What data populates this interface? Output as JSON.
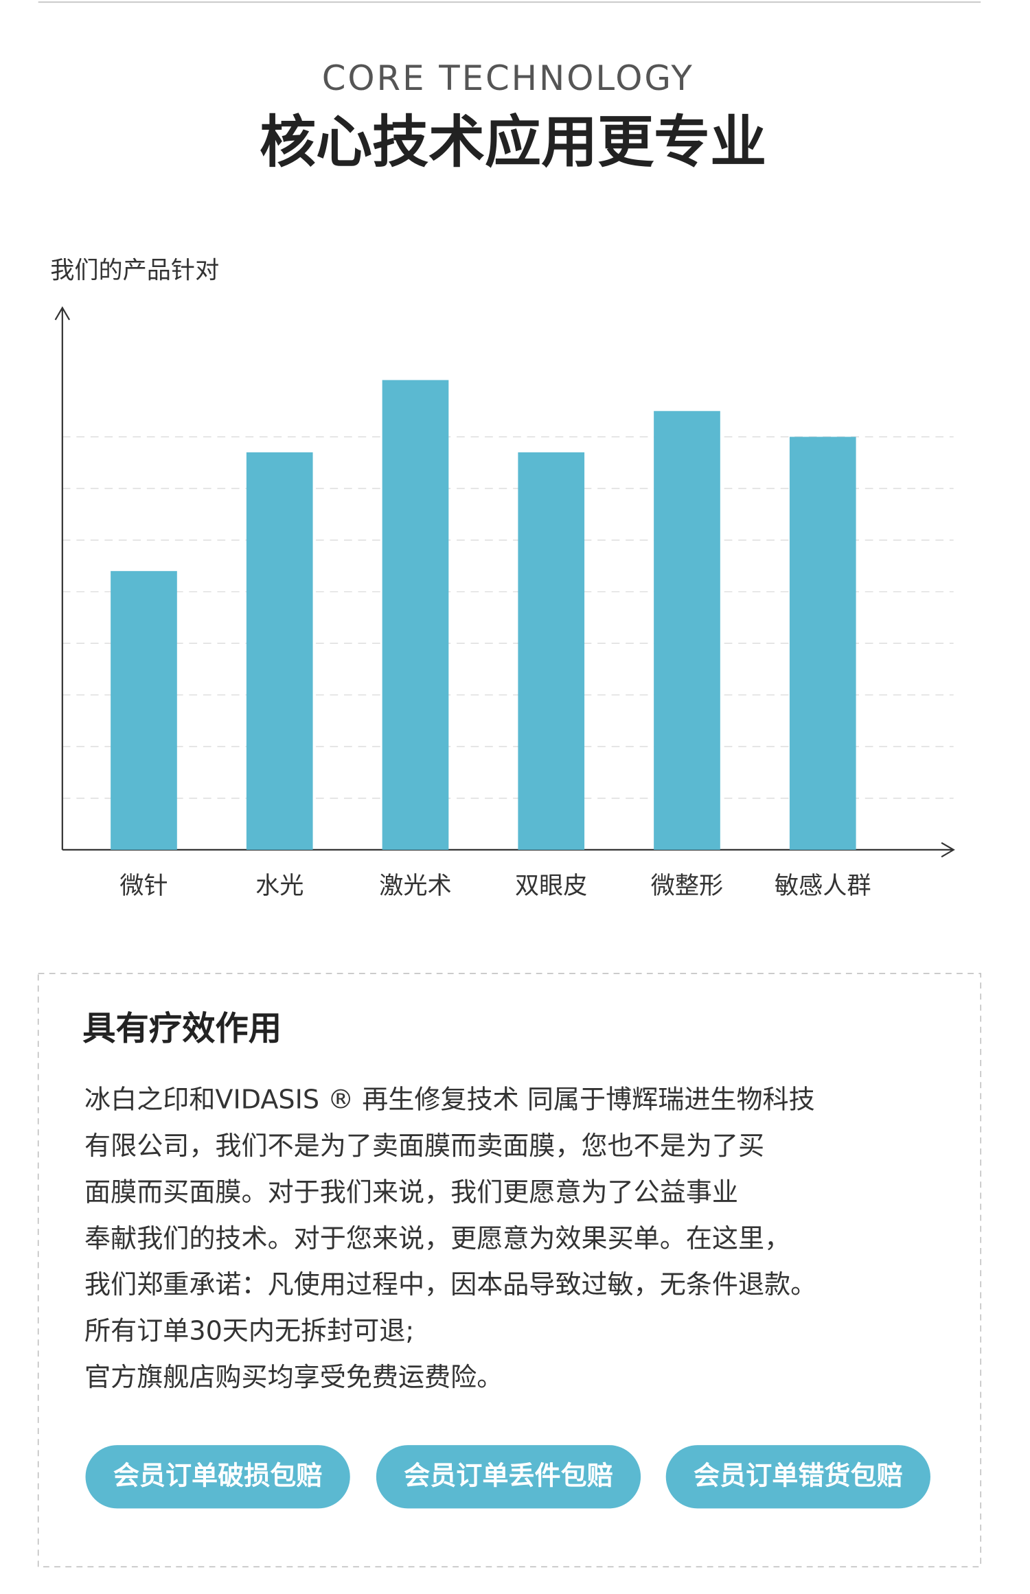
{
  "header": {
    "subtitle": "CORE TECHNOLOGY",
    "title": "核心技术应用更专业"
  },
  "chart_data": {
    "type": "bar",
    "ylabel": "我们的产品针对",
    "categories": [
      "微针",
      "水光",
      "激光术",
      "双眼皮",
      "微整形",
      "敏感人群"
    ],
    "values": [
      5.4,
      7.7,
      9.1,
      7.7,
      8.5,
      8.0
    ],
    "color": "#5bb9d1",
    "ylim": [
      0,
      10.5
    ],
    "yticks": [
      1,
      2,
      3,
      4,
      5,
      6,
      7,
      8
    ],
    "grid": true
  },
  "card": {
    "title": "具有疗效作用",
    "lines": [
      "冰白之印和VIDASIS ® 再生修复技术 同属于博辉瑞进生物科技",
      "有限公司，我们不是为了卖面膜而卖面膜，您也不是为了买",
      "面膜而买面膜。对于我们来说，我们更愿意为了公益事业",
      "奉献我们的技术。对于您来说，更愿意为效果买单。在这里，",
      "我们郑重承诺：凡使用过程中，因本品导致过敏，无条件退款。",
      "所有订单30天内无拆封可退;",
      "官方旗舰店购买均享受免费运费险。"
    ],
    "buttons": [
      "会员订单破损包赔",
      "会员订单丢件包赔",
      "会员订单错货包赔"
    ]
  }
}
